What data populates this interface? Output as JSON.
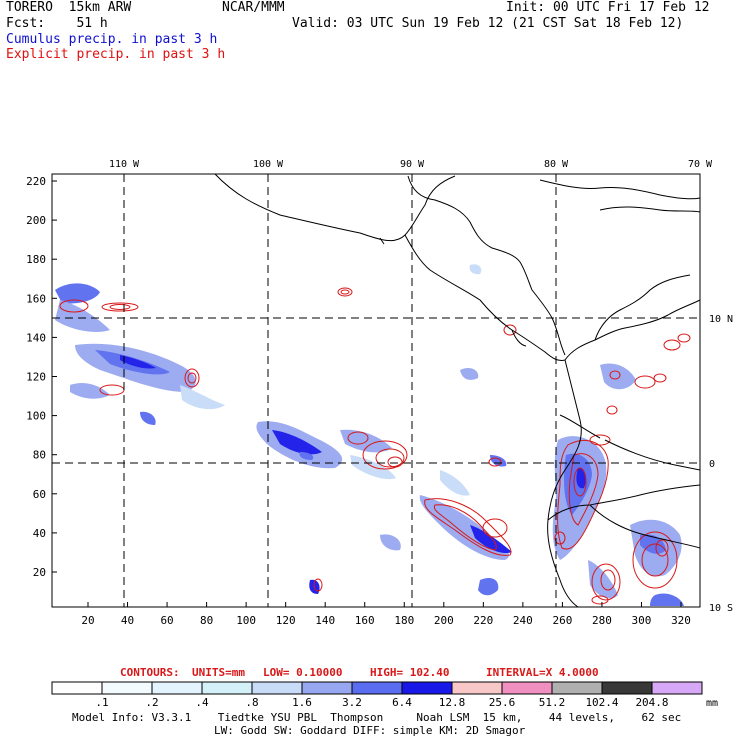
{
  "header": {
    "model_name": "TORERO  15km ARW",
    "org": "NCAR/MMM",
    "init": "Init: 00 UTC Fri 17 Feb 12",
    "fcst": "Fcst:    51 h",
    "valid": "Valid: 03 UTC Sun 19 Feb 12 (21 CST Sat 18 Feb 12)",
    "field1": "Cumulus precip. in past 3 h",
    "field2": "Explicit precip. in past 3 h"
  },
  "colors": {
    "field1": "#1010d0",
    "field2": "#e01010",
    "contour": "#d81818",
    "coast": "#000000"
  },
  "map": {
    "lon_labels": [
      "110 W",
      "100 W",
      "90 W",
      "80 W",
      "70 W"
    ],
    "lat_labels": [
      "10 N",
      "0",
      "10 S"
    ],
    "x_ticks": [
      "20",
      "40",
      "60",
      "80",
      "100",
      "120",
      "140",
      "160",
      "180",
      "200",
      "220",
      "240",
      "260",
      "280",
      "300",
      "320"
    ],
    "y_ticks": [
      "20",
      "40",
      "60",
      "80",
      "100",
      "120",
      "140",
      "160",
      "180",
      "200",
      "220"
    ]
  },
  "contour_info": {
    "label": "CONTOURS:",
    "units": "UNITS=mm",
    "low": "LOW= 0.10000",
    "high": "HIGH=  102.40",
    "interval": "INTERVAL=X  4.0000"
  },
  "colorbar": {
    "labels": [
      ".1",
      ".2",
      ".4",
      ".8",
      "1.6",
      "3.2",
      "6.4",
      "12.8",
      "25.6",
      "51.2",
      "102.4",
      "204.8"
    ],
    "colors": [
      "#ffffff",
      "#f4fbff",
      "#e4f4ff",
      "#d4f0f8",
      "#c8dcf8",
      "#98a8f0",
      "#5a6cf0",
      "#1818e8",
      "#f8c8c8",
      "#f090c0",
      "#b0b0b0",
      "#383838",
      "#d8a8f8"
    ],
    "unit": "mm"
  },
  "footer": {
    "line1": "Model Info: V3.3.1    Tiedtke YSU PBL  Thompson     Noah LSM  15 km,    44 levels,    62 sec",
    "line2": "LW: Godd SW: Goddard DIFF: simple KM: 2D Smagor"
  }
}
